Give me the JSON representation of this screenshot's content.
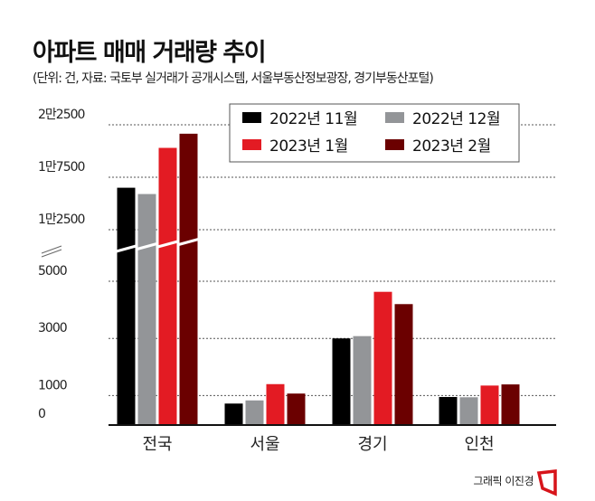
{
  "title": "아파트 매매 거래량 추이",
  "subtitle": "(단위: 건, 자료: 국토부 실거래가 공개시스템, 서울부동산정보광장, 경기부동산포털)",
  "credit": "그래픽 이진경",
  "chart_data": {
    "type": "bar",
    "title": "아파트 매매 거래량 추이",
    "xlabel": "",
    "ylabel": "건",
    "categories": [
      "전국",
      "서울",
      "경기",
      "인천"
    ],
    "series": [
      {
        "name": "2022년 11월",
        "color": "#000000",
        "values": [
          16500,
          720,
          3000,
          950
        ]
      },
      {
        "name": "2022년 12월",
        "color": "#939598",
        "values": [
          15900,
          830,
          3080,
          940
        ]
      },
      {
        "name": "2023년 1월",
        "color": "#e31b23",
        "values": [
          20300,
          1400,
          4630,
          1350
        ]
      },
      {
        "name": "2023년 2월",
        "color": "#6b0000",
        "values": [
          21650,
          1070,
          4200,
          1390
        ]
      }
    ],
    "yticks": [
      {
        "value": 0,
        "label": "0"
      },
      {
        "value": 1000,
        "label": "1000"
      },
      {
        "value": 3000,
        "label": "3000"
      },
      {
        "value": 5000,
        "label": "5000"
      },
      {
        "value": 12500,
        "label": "1만2500"
      },
      {
        "value": 17500,
        "label": "1만7500"
      },
      {
        "value": 22500,
        "label": "2만2500"
      }
    ],
    "axis_break": [
      5000,
      12500
    ],
    "ylim": [
      0,
      22500
    ],
    "grid": true,
    "legend_position": "top-right"
  }
}
